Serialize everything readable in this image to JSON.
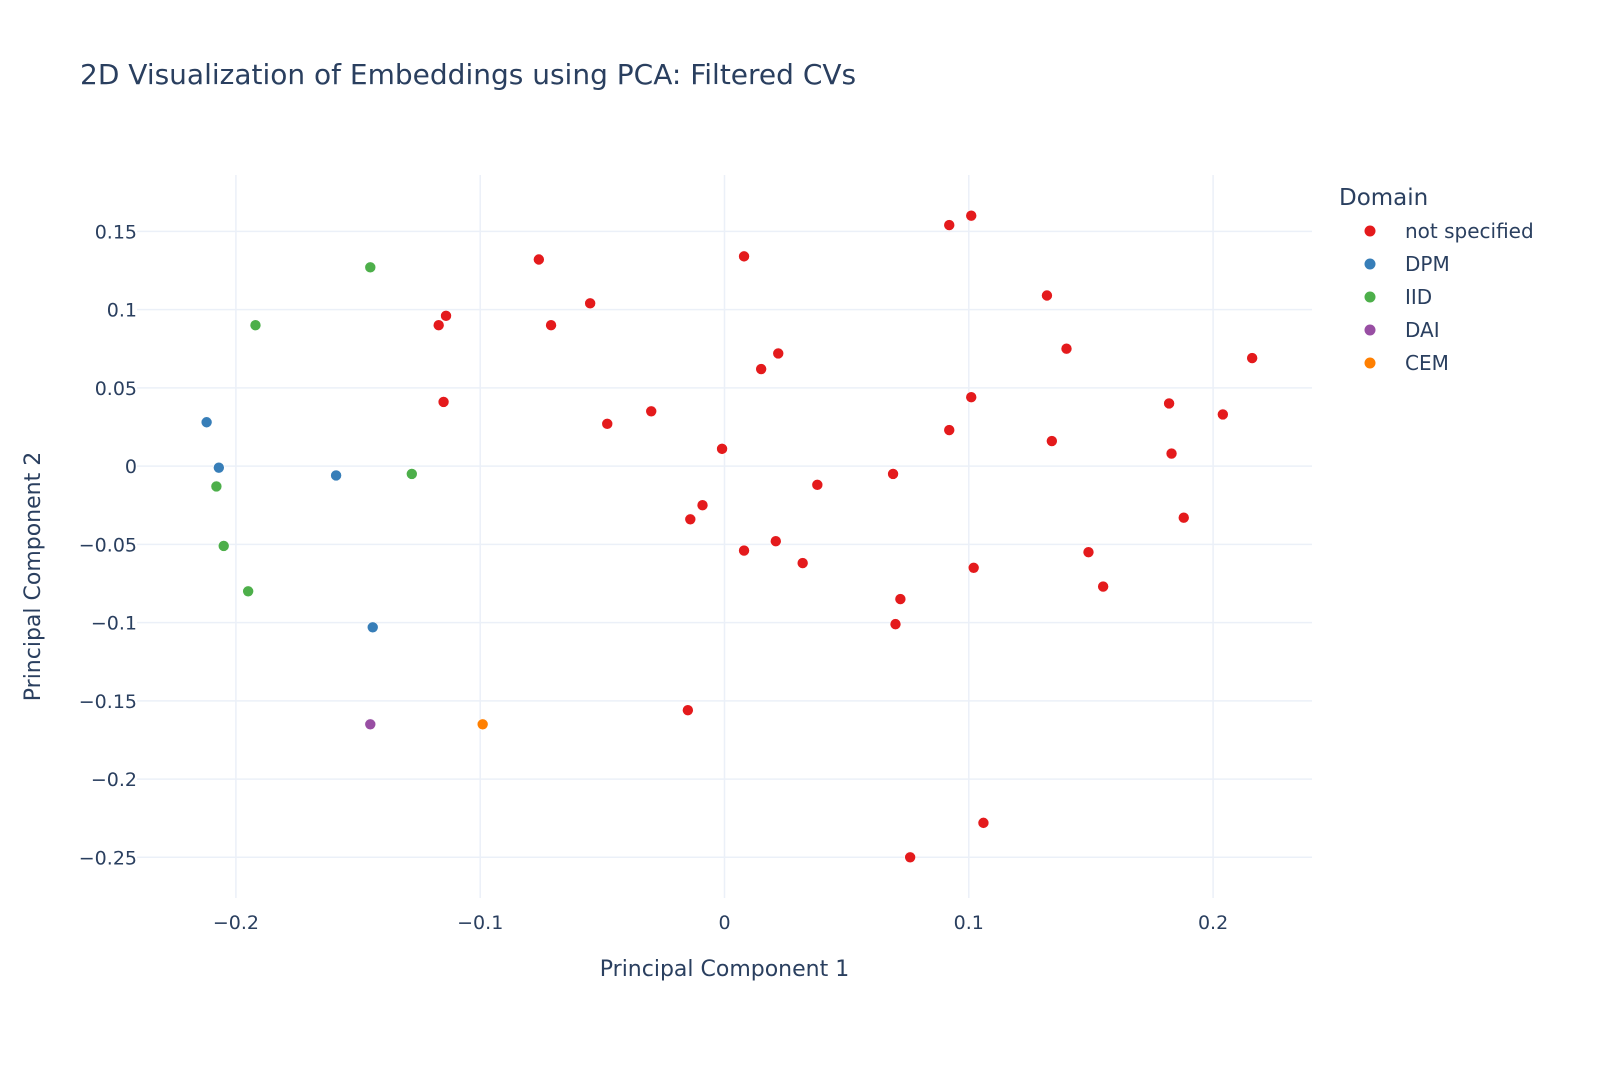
{
  "chart_data": {
    "type": "scatter",
    "title": "2D Visualization of Embeddings using PCA: Filtered CVs",
    "xlabel": "Principal Component 1",
    "ylabel": "Principal Component 2",
    "xlim": [
      -0.2405,
      0.2405
    ],
    "ylim": [
      -0.276,
      0.186
    ],
    "x_ticks": [
      -0.2,
      -0.1,
      0,
      0.1,
      0.2
    ],
    "x_tick_labels": [
      "−0.2",
      "−0.1",
      "0",
      "0.1",
      "0.2"
    ],
    "y_ticks": [
      0.15,
      0.1,
      0.05,
      0,
      -0.05,
      -0.1,
      -0.15,
      -0.2,
      -0.25
    ],
    "y_tick_labels": [
      "0.15",
      "0.1",
      "0.05",
      "0",
      "−0.05",
      "−0.1",
      "−0.15",
      "−0.2",
      "−0.25"
    ],
    "grid": true,
    "legend_title": "Domain",
    "legend_position": "right",
    "series": [
      {
        "name": "not specified",
        "color": "#e41a1c",
        "x": [
          0.092,
          0.101,
          0.008,
          -0.076,
          -0.055,
          -0.117,
          -0.114,
          -0.071,
          0.132,
          0.022,
          0.015,
          0.14,
          0.216,
          -0.115,
          0.101,
          0.182,
          0.204,
          0.092,
          -0.048,
          -0.03,
          0.134,
          -0.001,
          0.183,
          0.069,
          0.038,
          -0.009,
          -0.014,
          0.188,
          0.021,
          0.008,
          0.149,
          0.032,
          0.102,
          0.155,
          0.072,
          0.07,
          -0.015,
          0.106,
          0.076
        ],
        "y": [
          0.154,
          0.16,
          0.134,
          0.132,
          0.104,
          0.09,
          0.096,
          0.09,
          0.109,
          0.072,
          0.062,
          0.075,
          0.069,
          0.041,
          0.044,
          0.04,
          0.033,
          0.023,
          0.027,
          0.035,
          0.016,
          0.011,
          0.008,
          -0.005,
          -0.012,
          -0.025,
          -0.034,
          -0.033,
          -0.048,
          -0.054,
          -0.055,
          -0.062,
          -0.065,
          -0.077,
          -0.085,
          -0.101,
          -0.156,
          -0.228,
          -0.25
        ]
      },
      {
        "name": "DPM",
        "color": "#377eb8",
        "x": [
          -0.212,
          -0.207,
          -0.159,
          -0.144
        ],
        "y": [
          0.028,
          -0.001,
          -0.006,
          -0.103
        ]
      },
      {
        "name": "IID",
        "color": "#4daf4a",
        "x": [
          -0.145,
          -0.192,
          -0.128,
          -0.208,
          -0.205,
          -0.195
        ],
        "y": [
          0.127,
          0.09,
          -0.005,
          -0.013,
          -0.051,
          -0.08
        ]
      },
      {
        "name": "DAI",
        "color": "#984ea3",
        "x": [
          -0.145
        ],
        "y": [
          -0.165
        ]
      },
      {
        "name": "CEM",
        "color": "#ff7f00",
        "x": [
          -0.099
        ],
        "y": [
          -0.165
        ]
      }
    ]
  }
}
